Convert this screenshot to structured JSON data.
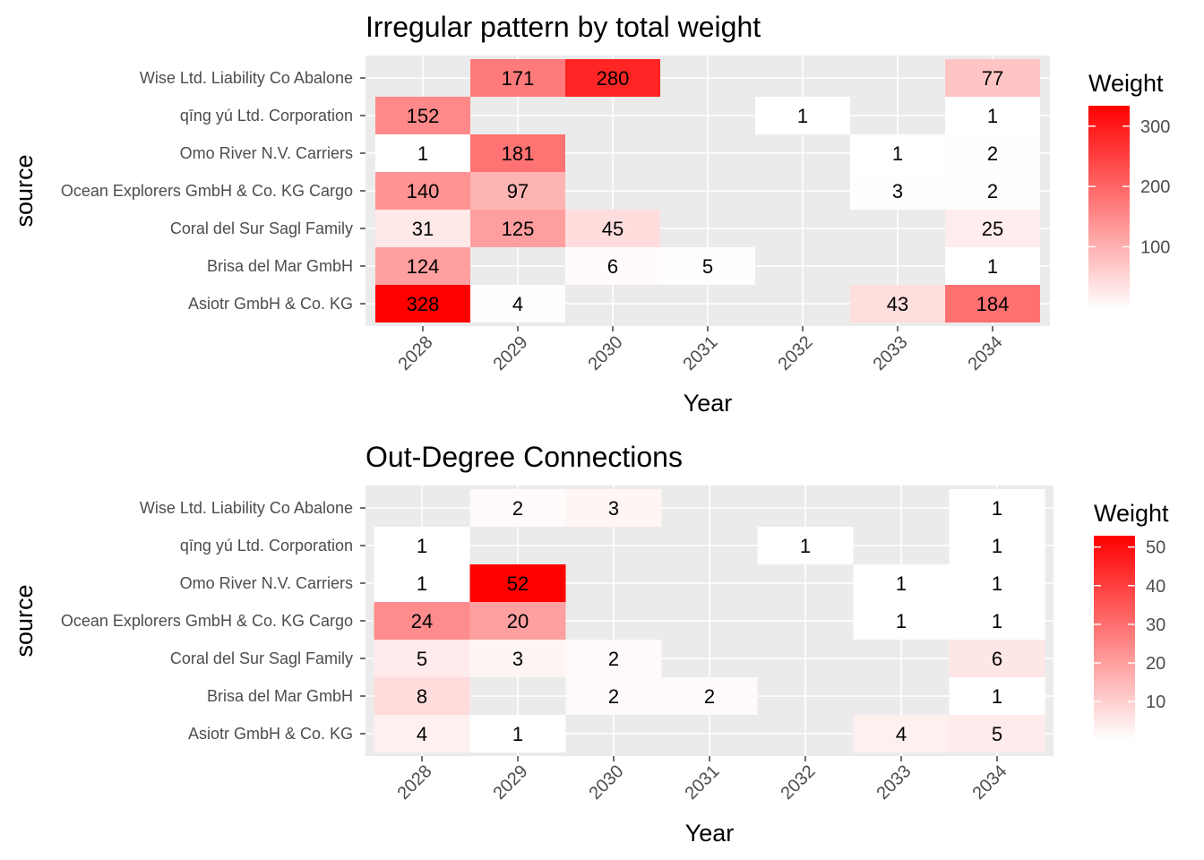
{
  "chart_data": [
    {
      "type": "heatmap",
      "title": "Irregular pattern by total weight",
      "xlabel": "Year",
      "ylabel": "source",
      "x_categories": [
        "2028",
        "2029",
        "2030",
        "2031",
        "2032",
        "2033",
        "2034"
      ],
      "y_categories": [
        "Wise Ltd. Liability Co Abalone",
        "qīng yú Ltd. Corporation",
        "Omo River  N.V. Carriers",
        "Ocean Explorers GmbH & Co. KG Cargo",
        "Coral del Sur Sagl Family",
        "Brisa del Mar GmbH",
        "Asiotr GmbH & Co. KG"
      ],
      "cells": [
        {
          "x": "2029",
          "y": "Wise Ltd. Liability Co Abalone",
          "value": 171
        },
        {
          "x": "2030",
          "y": "Wise Ltd. Liability Co Abalone",
          "value": 280
        },
        {
          "x": "2034",
          "y": "Wise Ltd. Liability Co Abalone",
          "value": 77
        },
        {
          "x": "2028",
          "y": "qīng yú Ltd. Corporation",
          "value": 152
        },
        {
          "x": "2032",
          "y": "qīng yú Ltd. Corporation",
          "value": 1
        },
        {
          "x": "2034",
          "y": "qīng yú Ltd. Corporation",
          "value": 1
        },
        {
          "x": "2028",
          "y": "Omo River  N.V. Carriers",
          "value": 1
        },
        {
          "x": "2029",
          "y": "Omo River  N.V. Carriers",
          "value": 181
        },
        {
          "x": "2033",
          "y": "Omo River  N.V. Carriers",
          "value": 1
        },
        {
          "x": "2034",
          "y": "Omo River  N.V. Carriers",
          "value": 2
        },
        {
          "x": "2028",
          "y": "Ocean Explorers GmbH & Co. KG Cargo",
          "value": 140
        },
        {
          "x": "2029",
          "y": "Ocean Explorers GmbH & Co. KG Cargo",
          "value": 97
        },
        {
          "x": "2033",
          "y": "Ocean Explorers GmbH & Co. KG Cargo",
          "value": 3
        },
        {
          "x": "2034",
          "y": "Ocean Explorers GmbH & Co. KG Cargo",
          "value": 2
        },
        {
          "x": "2028",
          "y": "Coral del Sur Sagl Family",
          "value": 31
        },
        {
          "x": "2029",
          "y": "Coral del Sur Sagl Family",
          "value": 125
        },
        {
          "x": "2030",
          "y": "Coral del Sur Sagl Family",
          "value": 45
        },
        {
          "x": "2034",
          "y": "Coral del Sur Sagl Family",
          "value": 25
        },
        {
          "x": "2028",
          "y": "Brisa del Mar GmbH",
          "value": 124
        },
        {
          "x": "2030",
          "y": "Brisa del Mar GmbH",
          "value": 6
        },
        {
          "x": "2031",
          "y": "Brisa del Mar GmbH",
          "value": 5
        },
        {
          "x": "2034",
          "y": "Brisa del Mar GmbH",
          "value": 1
        },
        {
          "x": "2028",
          "y": "Asiotr GmbH & Co. KG",
          "value": 328
        },
        {
          "x": "2029",
          "y": "Asiotr GmbH & Co. KG",
          "value": 4
        },
        {
          "x": "2033",
          "y": "Asiotr GmbH & Co. KG",
          "value": 43
        },
        {
          "x": "2034",
          "y": "Asiotr GmbH & Co. KG",
          "value": 184
        }
      ],
      "legend": {
        "title": "Weight",
        "placement": "right",
        "ticks": [
          100,
          200,
          300
        ],
        "range": [
          1,
          328
        ],
        "color_low": "#ffffff",
        "color_high": "#ff0000"
      },
      "grid": true,
      "panel_color": "#ebebeb"
    },
    {
      "type": "heatmap",
      "title": "Out-Degree Connections",
      "xlabel": "Year",
      "ylabel": "source",
      "x_categories": [
        "2028",
        "2029",
        "2030",
        "2031",
        "2032",
        "2033",
        "2034"
      ],
      "y_categories": [
        "Wise Ltd. Liability Co Abalone",
        "qīng yú Ltd. Corporation",
        "Omo River  N.V. Carriers",
        "Ocean Explorers GmbH & Co. KG Cargo",
        "Coral del Sur Sagl Family",
        "Brisa del Mar GmbH",
        "Asiotr GmbH & Co. KG"
      ],
      "cells": [
        {
          "x": "2029",
          "y": "Wise Ltd. Liability Co Abalone",
          "value": 2
        },
        {
          "x": "2030",
          "y": "Wise Ltd. Liability Co Abalone",
          "value": 3
        },
        {
          "x": "2034",
          "y": "Wise Ltd. Liability Co Abalone",
          "value": 1
        },
        {
          "x": "2028",
          "y": "qīng yú Ltd. Corporation",
          "value": 1
        },
        {
          "x": "2032",
          "y": "qīng yú Ltd. Corporation",
          "value": 1
        },
        {
          "x": "2034",
          "y": "qīng yú Ltd. Corporation",
          "value": 1
        },
        {
          "x": "2028",
          "y": "Omo River  N.V. Carriers",
          "value": 1
        },
        {
          "x": "2029",
          "y": "Omo River  N.V. Carriers",
          "value": 52
        },
        {
          "x": "2033",
          "y": "Omo River  N.V. Carriers",
          "value": 1
        },
        {
          "x": "2034",
          "y": "Omo River  N.V. Carriers",
          "value": 1
        },
        {
          "x": "2028",
          "y": "Ocean Explorers GmbH & Co. KG Cargo",
          "value": 24
        },
        {
          "x": "2029",
          "y": "Ocean Explorers GmbH & Co. KG Cargo",
          "value": 20
        },
        {
          "x": "2033",
          "y": "Ocean Explorers GmbH & Co. KG Cargo",
          "value": 1
        },
        {
          "x": "2034",
          "y": "Ocean Explorers GmbH & Co. KG Cargo",
          "value": 1
        },
        {
          "x": "2028",
          "y": "Coral del Sur Sagl Family",
          "value": 5
        },
        {
          "x": "2029",
          "y": "Coral del Sur Sagl Family",
          "value": 3
        },
        {
          "x": "2030",
          "y": "Coral del Sur Sagl Family",
          "value": 2
        },
        {
          "x": "2034",
          "y": "Coral del Sur Sagl Family",
          "value": 6
        },
        {
          "x": "2028",
          "y": "Brisa del Mar GmbH",
          "value": 8
        },
        {
          "x": "2030",
          "y": "Brisa del Mar GmbH",
          "value": 2
        },
        {
          "x": "2031",
          "y": "Brisa del Mar GmbH",
          "value": 2
        },
        {
          "x": "2034",
          "y": "Brisa del Mar GmbH",
          "value": 1
        },
        {
          "x": "2028",
          "y": "Asiotr GmbH & Co. KG",
          "value": 4
        },
        {
          "x": "2029",
          "y": "Asiotr GmbH & Co. KG",
          "value": 1
        },
        {
          "x": "2033",
          "y": "Asiotr GmbH & Co. KG",
          "value": 4
        },
        {
          "x": "2034",
          "y": "Asiotr GmbH & Co. KG",
          "value": 5
        }
      ],
      "legend": {
        "title": "Weight",
        "placement": "right",
        "ticks": [
          10,
          20,
          30,
          40,
          50
        ],
        "range": [
          1,
          52
        ],
        "color_low": "#ffffff",
        "color_high": "#ff0000"
      },
      "grid": true,
      "panel_color": "#ebebeb"
    }
  ]
}
